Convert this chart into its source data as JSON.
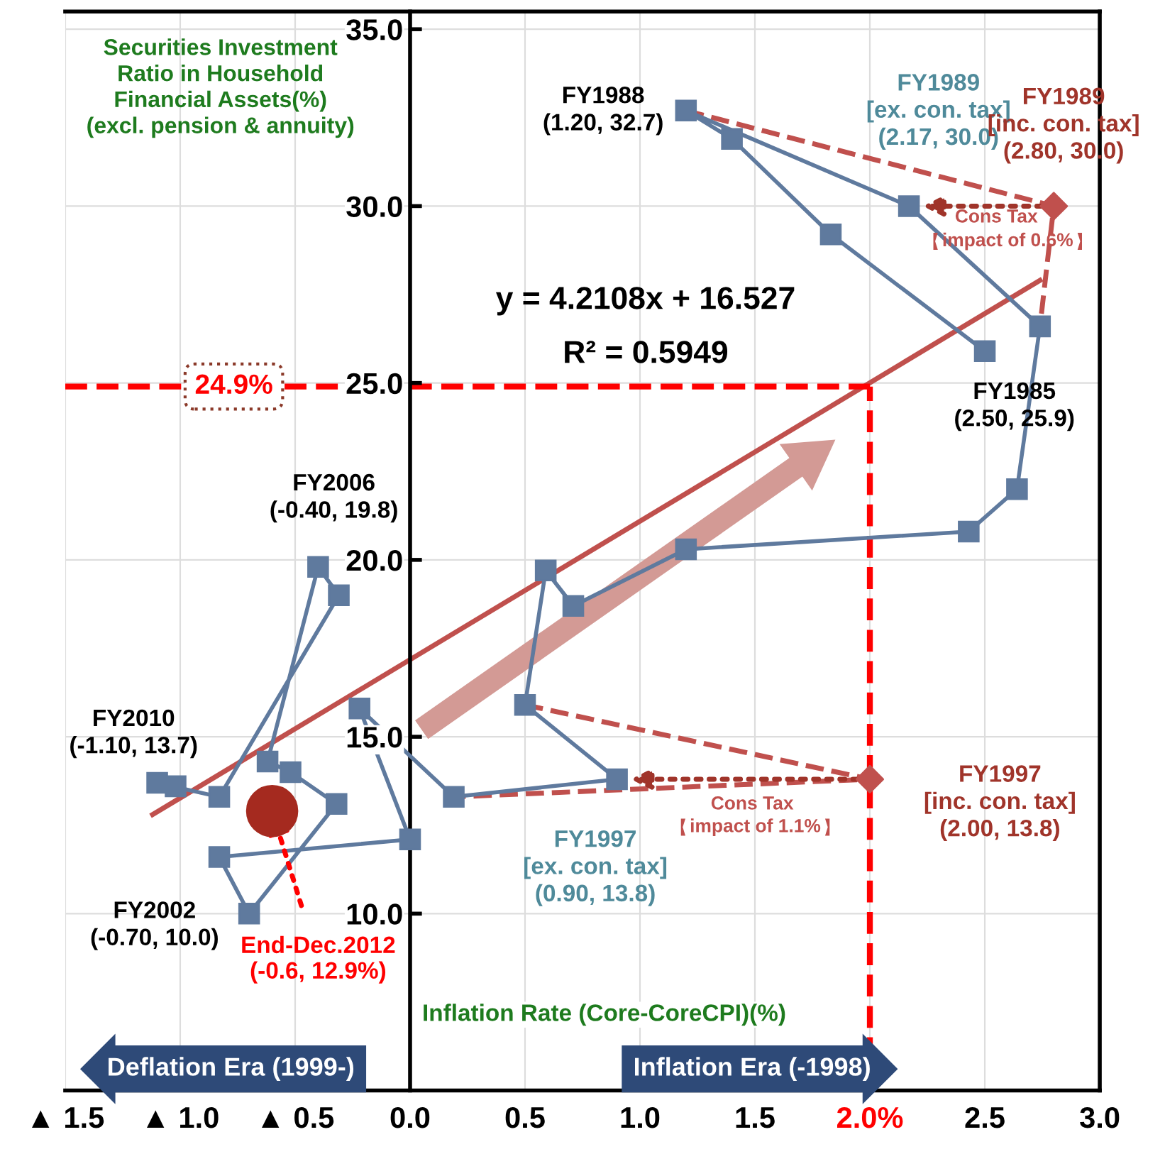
{
  "chart_data": {
    "type": "line",
    "ylabel": "Securities Investment\nRatio in Household\nFinancial Assets(%)\n(excl. pension & annuity)",
    "xlabel": "Inflation Rate (Core-CoreCPI)(%)",
    "xlim": [
      -1.5,
      3.0
    ],
    "ylim": [
      5,
      35.5
    ],
    "xticks": [
      {
        "value": -1.5,
        "label": "▲ 1.5"
      },
      {
        "value": -1.0,
        "label": "▲ 1.0"
      },
      {
        "value": -0.5,
        "label": "▲ 0.5"
      },
      {
        "value": 0.0,
        "label": "0.0"
      },
      {
        "value": 0.5,
        "label": "0.5"
      },
      {
        "value": 1.0,
        "label": "1.0"
      },
      {
        "value": 1.5,
        "label": "1.5"
      },
      {
        "value": 2.0,
        "label": "2.0%"
      },
      {
        "value": 2.5,
        "label": "2.5"
      },
      {
        "value": 3.0,
        "label": "3.0"
      }
    ],
    "yticks": [
      {
        "value": 10,
        "label": "10.0"
      },
      {
        "value": 15,
        "label": "15.0"
      },
      {
        "value": 20,
        "label": "20.0"
      },
      {
        "value": 25,
        "label": "25.0"
      },
      {
        "value": 30,
        "label": "30.0"
      },
      {
        "value": 35,
        "label": "35.0"
      }
    ],
    "grid": true,
    "series": [
      {
        "color": "#5f7a9e",
        "marker": "square",
        "line_style": "solid",
        "x": [
          2.5,
          1.83,
          1.4,
          1.2,
          2.17,
          2.74,
          2.64,
          2.43,
          1.2,
          0.71,
          0.59,
          0.5,
          0.9,
          0.19,
          -0.22,
          0.0,
          -0.83,
          -0.7,
          -0.32,
          -0.52,
          -0.62,
          -0.4,
          -0.31,
          -0.83,
          -1.1,
          -1.02
        ],
        "values": [
          25.9,
          29.2,
          31.9,
          32.7,
          30.0,
          26.6,
          22.0,
          20.8,
          20.3,
          18.7,
          19.7,
          15.9,
          13.8,
          13.3,
          15.8,
          12.1,
          11.6,
          10.0,
          13.1,
          14.0,
          14.3,
          19.8,
          19.0,
          13.3,
          13.7,
          13.6
        ]
      },
      {
        "type": "line",
        "color": "#c0504d",
        "marker": "none",
        "line_style": "dashed",
        "x": [
          1.2,
          2.8,
          2.74,
          null,
          0.5,
          2.0,
          0.19
        ],
        "values": [
          32.7,
          30.0,
          26.6,
          null,
          15.9,
          13.8,
          13.3
        ]
      },
      {
        "type": "scatter",
        "color": "#c0504d",
        "marker": "diamond",
        "x": [
          2.8,
          2.0
        ],
        "values": [
          30.0,
          13.8
        ]
      },
      {
        "type": "line",
        "color": "#c0504d",
        "marker": "none",
        "line_style": "solid",
        "x": [
          -1.12,
          2.74
        ],
        "values": [
          12.8,
          27.9
        ]
      },
      {
        "type": "scatter",
        "color": "#a52a1f",
        "marker": "circle",
        "x": [
          -0.6
        ],
        "values": [
          12.9
        ]
      }
    ],
    "ref_lines": [
      {
        "axis": "y",
        "value": 24.9,
        "label": "24.9%",
        "color": "#ff0000",
        "line_style": "dashed"
      },
      {
        "axis": "x",
        "value": 2.0,
        "label": null,
        "color": "#ff0000",
        "line_style": "dashed"
      }
    ],
    "annotations": [
      {
        "text": "FY1988\n(1.20, 32.7)",
        "x": 1.2,
        "y": 32.7
      },
      {
        "text": "FY1989\n[ex. con. tax]\n(2.17, 30.0)",
        "x": 2.17,
        "y": 30.0
      },
      {
        "text": "FY1989\n[inc. con. tax]\n(2.80, 30.0)",
        "x": 2.8,
        "y": 30.0
      },
      {
        "text": "FY1985\n(2.50, 25.9)",
        "x": 2.5,
        "y": 25.9
      },
      {
        "text": "FY2006\n(-0.40, 19.8)",
        "x": -0.4,
        "y": 19.8
      },
      {
        "text": "FY2010\n(-1.10, 13.7)",
        "x": -1.1,
        "y": 13.7
      },
      {
        "text": "FY2002\n(-0.70, 10.0)",
        "x": -0.7,
        "y": 10.0
      },
      {
        "text": "End-Dec.2012\n(-0.6, 12.9%)",
        "x": -0.6,
        "y": 12.9
      },
      {
        "text": "FY1997\n[ex. con. tax]\n(0.90, 13.8)",
        "x": 0.9,
        "y": 13.8
      },
      {
        "text": "FY1997\n[inc. con. tax]\n(2.00, 13.8)",
        "x": 2.0,
        "y": 13.8
      },
      "y = 4.2108x + 16.527",
      "R² = 0.5949",
      "Cons Tax",
      "impact of 0.6%",
      "Cons Tax",
      "impact of 1.1%",
      "Deflation Era (1999-)",
      "Inflation Era (-1998)"
    ]
  }
}
